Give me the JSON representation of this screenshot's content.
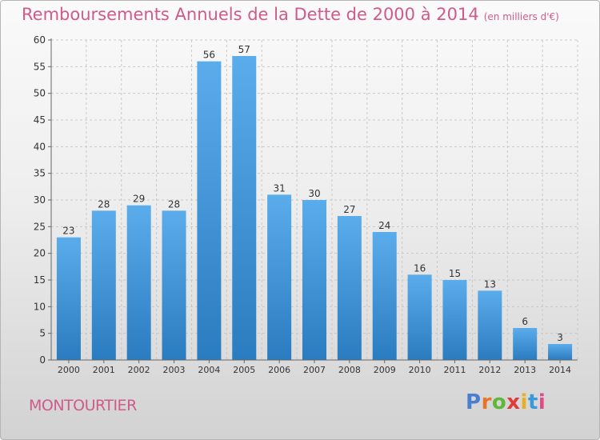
{
  "chart_data": {
    "type": "bar",
    "title": "Remboursements Annuels de la Dette de 2000 à 2014",
    "subtitle": "(en milliers d'€)",
    "categories": [
      "2000",
      "2001",
      "2002",
      "2003",
      "2004",
      "2005",
      "2006",
      "2007",
      "2008",
      "2009",
      "2010",
      "2011",
      "2012",
      "2013",
      "2014"
    ],
    "values": [
      23,
      28,
      29,
      28,
      56,
      57,
      31,
      30,
      27,
      24,
      16,
      15,
      13,
      6,
      3
    ],
    "ylim": [
      0,
      60
    ],
    "yticks": [
      0,
      5,
      10,
      15,
      20,
      25,
      30,
      35,
      40,
      45,
      50,
      55,
      60
    ],
    "grid": true,
    "bar_color": "#3a8ed4"
  },
  "footer": {
    "commune": "MONTOURTIER",
    "logo_letters": [
      "P",
      "r",
      "o",
      "x",
      "i",
      "t",
      "i"
    ],
    "logo_colors": [
      "#4a7fd0",
      "#e8742a",
      "#5fb83a",
      "#e03a3a",
      "#e8b020",
      "#3a9ad8",
      "#e04a8a"
    ]
  },
  "colors": {
    "title": "#d05a8a",
    "axis": "#333333",
    "grid": "#c8c8c8"
  }
}
